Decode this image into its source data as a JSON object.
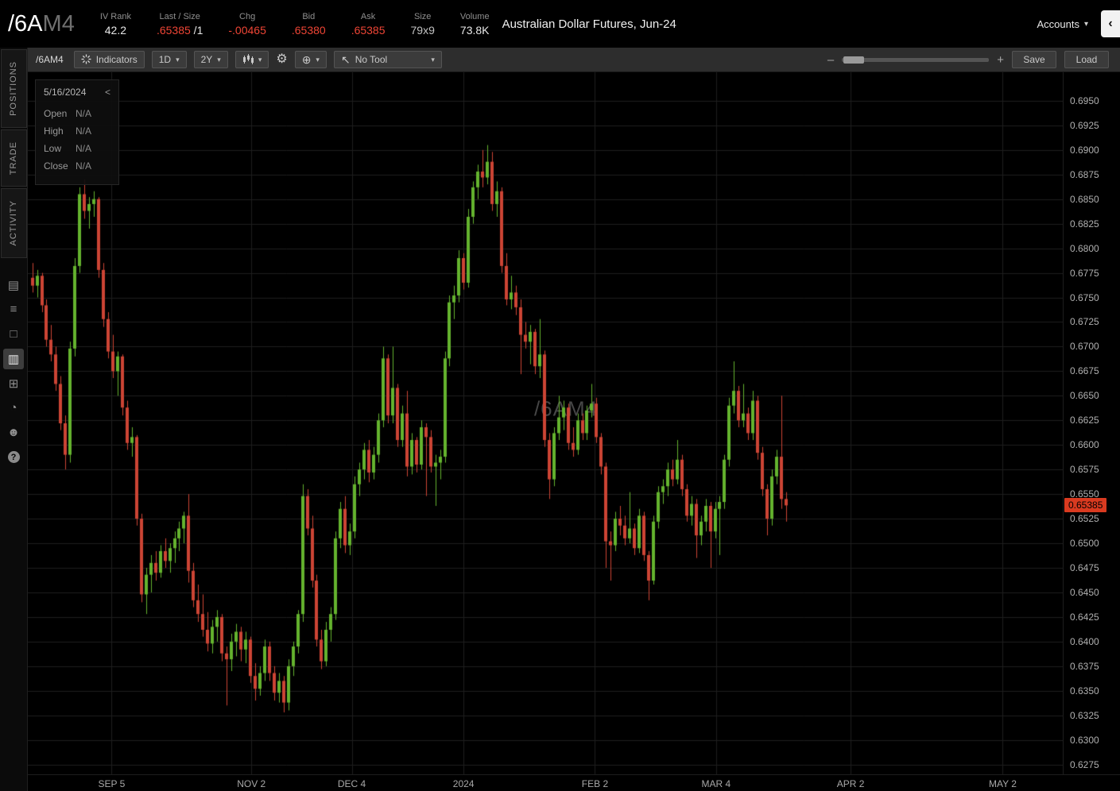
{
  "header": {
    "symbol": "/6A",
    "symbol_suffix": "M4",
    "stats": [
      {
        "label": "IV Rank",
        "value": "42.2",
        "value_class": "white"
      },
      {
        "label": "Last / Size",
        "value": ".65385",
        "value_class": "red",
        "suffix": " /1",
        "suffix_class": "white"
      },
      {
        "label": "Chg",
        "value": "-.00465",
        "value_class": "red"
      },
      {
        "label": "Bid",
        "value": ".65380",
        "value_class": "red"
      },
      {
        "label": "Ask",
        "value": ".65385",
        "value_class": "red"
      },
      {
        "label": "Size",
        "value": "79x9",
        "value_class": "dim"
      },
      {
        "label": "Volume",
        "value": "73.8K",
        "value_class": "white"
      }
    ],
    "description": "Australian Dollar Futures, Jun-24",
    "accounts_label": "Accounts"
  },
  "sidebar": {
    "tabs": [
      {
        "label": "POSITIONS"
      },
      {
        "label": "TRADE"
      },
      {
        "label": "ACTIVITY"
      }
    ],
    "icons": [
      {
        "name": "quote-board-icon",
        "glyph": "▤"
      },
      {
        "name": "watchlist-icon",
        "glyph": "≡"
      },
      {
        "name": "orders-icon",
        "glyph": "□"
      },
      {
        "name": "chart-icon",
        "glyph": "▥",
        "active": true
      },
      {
        "name": "grid-icon",
        "glyph": "⊞"
      },
      {
        "name": "history-icon",
        "glyph": "◔"
      },
      {
        "name": "traders-icon",
        "glyph": "☻"
      },
      {
        "name": "help-icon",
        "glyph": "?",
        "circle": true
      }
    ]
  },
  "toolbar": {
    "symbol_label": "/6AM4",
    "indicators_label": "Indicators",
    "timeframe": "1D",
    "range": "2Y",
    "no_tool_label": "No Tool",
    "save_label": "Save",
    "load_label": "Load"
  },
  "icons": {
    "chevron_down": "▾",
    "chevron_left": "‹",
    "gear": "⚙",
    "crosshair": "⊕",
    "cursor": "↖",
    "minus": "–",
    "plus": "+",
    "panel_collapse": "<"
  },
  "ohlc": {
    "date": "5/16/2024",
    "rows": [
      {
        "label": "Open",
        "value": "N/A"
      },
      {
        "label": "High",
        "value": "N/A"
      },
      {
        "label": "Low",
        "value": "N/A"
      },
      {
        "label": "Close",
        "value": "N/A"
      }
    ]
  },
  "chart_data": {
    "type": "candlestick",
    "symbol_watermark": "/6AM4",
    "ylim": [
      0.6265,
      0.6979
    ],
    "y_ticks": [
      0.695,
      0.6925,
      0.69,
      0.6875,
      0.685,
      0.6825,
      0.68,
      0.6775,
      0.675,
      0.6725,
      0.67,
      0.6675,
      0.665,
      0.6625,
      0.66,
      0.6575,
      0.655,
      0.6525,
      0.65,
      0.6475,
      0.645,
      0.6425,
      0.64,
      0.6375,
      0.635,
      0.6325,
      0.63,
      0.6275
    ],
    "x_labels": [
      {
        "label": "SEP 5",
        "pos": 0.081
      },
      {
        "label": "NOV 2",
        "pos": 0.216
      },
      {
        "label": "DEC 4",
        "pos": 0.313
      },
      {
        "label": "2024",
        "pos": 0.421
      },
      {
        "label": "FEB 2",
        "pos": 0.548
      },
      {
        "label": "MAR 4",
        "pos": 0.665
      },
      {
        "label": "APR 2",
        "pos": 0.795
      },
      {
        "label": "MAY 2",
        "pos": 0.942
      }
    ],
    "last_price": 0.65385,
    "last_price_label": "0.65385",
    "data_span": [
      0.002,
      0.735
    ],
    "candles": [
      [
        0.677,
        0.6785,
        0.6755,
        0.6762
      ],
      [
        0.6762,
        0.6778,
        0.675,
        0.6772
      ],
      [
        0.6772,
        0.6775,
        0.6735,
        0.6742
      ],
      [
        0.6742,
        0.6748,
        0.67,
        0.6707
      ],
      [
        0.6707,
        0.6722,
        0.6685,
        0.6692
      ],
      [
        0.6692,
        0.67,
        0.6655,
        0.6662
      ],
      [
        0.6662,
        0.667,
        0.6615,
        0.6622
      ],
      [
        0.6622,
        0.663,
        0.6575,
        0.659
      ],
      [
        0.659,
        0.6705,
        0.6582,
        0.6698
      ],
      [
        0.6698,
        0.679,
        0.669,
        0.6782
      ],
      [
        0.6782,
        0.6862,
        0.6775,
        0.6855
      ],
      [
        0.6855,
        0.687,
        0.683,
        0.6838
      ],
      [
        0.6838,
        0.6852,
        0.682,
        0.6845
      ],
      [
        0.6845,
        0.6858,
        0.6832,
        0.685
      ],
      [
        0.685,
        0.6852,
        0.677,
        0.6778
      ],
      [
        0.6778,
        0.6785,
        0.672,
        0.6728
      ],
      [
        0.6728,
        0.6735,
        0.6688,
        0.6695
      ],
      [
        0.6695,
        0.6712,
        0.6668,
        0.6675
      ],
      [
        0.6675,
        0.6695,
        0.665,
        0.669
      ],
      [
        0.669,
        0.6692,
        0.663,
        0.6638
      ],
      [
        0.6638,
        0.6645,
        0.6595,
        0.6602
      ],
      [
        0.6602,
        0.6618,
        0.6588,
        0.6608
      ],
      [
        0.6608,
        0.661,
        0.6518,
        0.6525
      ],
      [
        0.6525,
        0.653,
        0.644,
        0.6448
      ],
      [
        0.6448,
        0.6475,
        0.6428,
        0.6468
      ],
      [
        0.6468,
        0.6488,
        0.645,
        0.648
      ],
      [
        0.648,
        0.6492,
        0.6462,
        0.647
      ],
      [
        0.647,
        0.6498,
        0.6465,
        0.6492
      ],
      [
        0.6492,
        0.6505,
        0.6475,
        0.6482
      ],
      [
        0.6482,
        0.65,
        0.647,
        0.6495
      ],
      [
        0.6495,
        0.6512,
        0.648,
        0.6505
      ],
      [
        0.6505,
        0.6522,
        0.6492,
        0.6515
      ],
      [
        0.6515,
        0.6532,
        0.65,
        0.6528
      ],
      [
        0.6528,
        0.655,
        0.646,
        0.6472
      ],
      [
        0.6472,
        0.648,
        0.6435,
        0.6442
      ],
      [
        0.6442,
        0.6458,
        0.642,
        0.6428
      ],
      [
        0.6428,
        0.6448,
        0.6405,
        0.6412
      ],
      [
        0.6412,
        0.643,
        0.639,
        0.6398
      ],
      [
        0.6398,
        0.6422,
        0.6388,
        0.6415
      ],
      [
        0.6415,
        0.6432,
        0.64,
        0.6425
      ],
      [
        0.6425,
        0.6428,
        0.638,
        0.6388
      ],
      [
        0.6388,
        0.6395,
        0.6335,
        0.6382
      ],
      [
        0.6382,
        0.6408,
        0.637,
        0.64
      ],
      [
        0.64,
        0.6418,
        0.6385,
        0.641
      ],
      [
        0.641,
        0.6415,
        0.638,
        0.6392
      ],
      [
        0.6392,
        0.641,
        0.6378,
        0.6402
      ],
      [
        0.6402,
        0.6405,
        0.6358,
        0.6365
      ],
      [
        0.6365,
        0.6378,
        0.634,
        0.6352
      ],
      [
        0.6352,
        0.6375,
        0.6345,
        0.6368
      ],
      [
        0.6368,
        0.6402,
        0.636,
        0.6395
      ],
      [
        0.6395,
        0.64,
        0.636,
        0.6368
      ],
      [
        0.6368,
        0.6375,
        0.634,
        0.6348
      ],
      [
        0.6348,
        0.6368,
        0.6338,
        0.636
      ],
      [
        0.636,
        0.6365,
        0.6328,
        0.6338
      ],
      [
        0.6338,
        0.6382,
        0.633,
        0.6375
      ],
      [
        0.6375,
        0.64,
        0.6365,
        0.6395
      ],
      [
        0.6395,
        0.6432,
        0.6388,
        0.6428
      ],
      [
        0.6428,
        0.656,
        0.642,
        0.6548
      ],
      [
        0.6548,
        0.6555,
        0.6508,
        0.6515
      ],
      [
        0.6515,
        0.6528,
        0.6455,
        0.6462
      ],
      [
        0.6462,
        0.6468,
        0.6395,
        0.6402
      ],
      [
        0.6402,
        0.6412,
        0.6372,
        0.638
      ],
      [
        0.638,
        0.642,
        0.6375,
        0.6412
      ],
      [
        0.6412,
        0.6435,
        0.64,
        0.6428
      ],
      [
        0.6428,
        0.6512,
        0.6422,
        0.6505
      ],
      [
        0.6505,
        0.6542,
        0.6495,
        0.6535
      ],
      [
        0.6535,
        0.6548,
        0.649,
        0.6498
      ],
      [
        0.6498,
        0.652,
        0.6488,
        0.6512
      ],
      [
        0.6512,
        0.6568,
        0.6505,
        0.656
      ],
      [
        0.656,
        0.6582,
        0.6548,
        0.6575
      ],
      [
        0.6575,
        0.6602,
        0.6565,
        0.6595
      ],
      [
        0.6595,
        0.6605,
        0.6562,
        0.6572
      ],
      [
        0.6572,
        0.6598,
        0.6565,
        0.659
      ],
      [
        0.659,
        0.6632,
        0.6582,
        0.6625
      ],
      [
        0.6625,
        0.67,
        0.6618,
        0.6688
      ],
      [
        0.6688,
        0.6692,
        0.6622,
        0.663
      ],
      [
        0.663,
        0.67,
        0.6622,
        0.6658
      ],
      [
        0.6658,
        0.6662,
        0.6598,
        0.6605
      ],
      [
        0.6605,
        0.664,
        0.6598,
        0.6632
      ],
      [
        0.6632,
        0.6655,
        0.6568,
        0.6578
      ],
      [
        0.6578,
        0.6612,
        0.657,
        0.6605
      ],
      [
        0.6605,
        0.6608,
        0.6572,
        0.658
      ],
      [
        0.658,
        0.6625,
        0.6575,
        0.6618
      ],
      [
        0.6618,
        0.6622,
        0.6548,
        0.6608
      ],
      [
        0.6608,
        0.6615,
        0.6572,
        0.6578
      ],
      [
        0.6578,
        0.659,
        0.6538,
        0.6582
      ],
      [
        0.6582,
        0.6595,
        0.6565,
        0.6588
      ],
      [
        0.6588,
        0.6695,
        0.6582,
        0.6688
      ],
      [
        0.6688,
        0.6752,
        0.668,
        0.6745
      ],
      [
        0.6745,
        0.6762,
        0.6728,
        0.6752
      ],
      [
        0.6752,
        0.6798,
        0.6745,
        0.679
      ],
      [
        0.679,
        0.6795,
        0.6758,
        0.6765
      ],
      [
        0.6765,
        0.684,
        0.676,
        0.6832
      ],
      [
        0.6832,
        0.6868,
        0.6825,
        0.6862
      ],
      [
        0.6862,
        0.6885,
        0.685,
        0.6878
      ],
      [
        0.6878,
        0.69,
        0.6862,
        0.6872
      ],
      [
        0.6872,
        0.6905,
        0.6865,
        0.6888
      ],
      [
        0.6888,
        0.6898,
        0.6838,
        0.6845
      ],
      [
        0.6845,
        0.6868,
        0.6832,
        0.6858
      ],
      [
        0.6858,
        0.6862,
        0.6775,
        0.6782
      ],
      [
        0.6782,
        0.6795,
        0.6742,
        0.6748
      ],
      [
        0.6748,
        0.6772,
        0.6738,
        0.6755
      ],
      [
        0.6755,
        0.6762,
        0.6732,
        0.674
      ],
      [
        0.674,
        0.6748,
        0.6672,
        0.6712
      ],
      [
        0.6712,
        0.6725,
        0.6698,
        0.6705
      ],
      [
        0.6705,
        0.6722,
        0.6682,
        0.6715
      ],
      [
        0.6715,
        0.6718,
        0.6672,
        0.668
      ],
      [
        0.668,
        0.6728,
        0.6668,
        0.6692
      ],
      [
        0.6692,
        0.6696,
        0.6598,
        0.6605
      ],
      [
        0.6605,
        0.6612,
        0.6545,
        0.6565
      ],
      [
        0.6565,
        0.6618,
        0.6558,
        0.6612
      ],
      [
        0.6612,
        0.665,
        0.6605,
        0.6628
      ],
      [
        0.6628,
        0.6645,
        0.6615,
        0.6638
      ],
      [
        0.6638,
        0.6642,
        0.6595,
        0.6602
      ],
      [
        0.6602,
        0.6618,
        0.6588,
        0.6595
      ],
      [
        0.6595,
        0.6632,
        0.659,
        0.6625
      ],
      [
        0.6625,
        0.6632,
        0.6605,
        0.6612
      ],
      [
        0.6612,
        0.664,
        0.6605,
        0.6635
      ],
      [
        0.6635,
        0.6662,
        0.6628,
        0.6642
      ],
      [
        0.6642,
        0.6648,
        0.6602,
        0.6608
      ],
      [
        0.6608,
        0.6612,
        0.657,
        0.6578
      ],
      [
        0.6578,
        0.6582,
        0.6475,
        0.6502
      ],
      [
        0.6502,
        0.6512,
        0.6462,
        0.6498
      ],
      [
        0.6498,
        0.6532,
        0.6492,
        0.6525
      ],
      [
        0.6525,
        0.6538,
        0.6508,
        0.6518
      ],
      [
        0.6518,
        0.6528,
        0.6498,
        0.6505
      ],
      [
        0.6505,
        0.6552,
        0.65,
        0.6515
      ],
      [
        0.6515,
        0.652,
        0.6488,
        0.6495
      ],
      [
        0.6495,
        0.6535,
        0.649,
        0.6528
      ],
      [
        0.6528,
        0.6532,
        0.6482,
        0.6488
      ],
      [
        0.6488,
        0.6492,
        0.6442,
        0.6462
      ],
      [
        0.6462,
        0.6528,
        0.6458,
        0.6522
      ],
      [
        0.6522,
        0.6558,
        0.6515,
        0.6552
      ],
      [
        0.6552,
        0.6565,
        0.654,
        0.6558
      ],
      [
        0.6558,
        0.6582,
        0.6548,
        0.6575
      ],
      [
        0.6575,
        0.6585,
        0.6558,
        0.6565
      ],
      [
        0.6565,
        0.6605,
        0.656,
        0.6585
      ],
      [
        0.6585,
        0.659,
        0.6548,
        0.6555
      ],
      [
        0.6555,
        0.656,
        0.6522,
        0.6528
      ],
      [
        0.6528,
        0.6548,
        0.6518,
        0.654
      ],
      [
        0.654,
        0.6545,
        0.6485,
        0.6508
      ],
      [
        0.6508,
        0.6528,
        0.6498,
        0.6522
      ],
      [
        0.6522,
        0.6545,
        0.6512,
        0.6538
      ],
      [
        0.6538,
        0.6542,
        0.6475,
        0.6512
      ],
      [
        0.6512,
        0.6542,
        0.6505,
        0.6535
      ],
      [
        0.6535,
        0.6548,
        0.6488,
        0.6542
      ],
      [
        0.6542,
        0.659,
        0.6535,
        0.6585
      ],
      [
        0.6585,
        0.6648,
        0.6578,
        0.664
      ],
      [
        0.664,
        0.6685,
        0.6632,
        0.6655
      ],
      [
        0.6655,
        0.666,
        0.6618,
        0.6625
      ],
      [
        0.6625,
        0.6662,
        0.6618,
        0.6632
      ],
      [
        0.6632,
        0.6638,
        0.6605,
        0.6612
      ],
      [
        0.6612,
        0.6655,
        0.6605,
        0.6645
      ],
      [
        0.6645,
        0.665,
        0.6585,
        0.6592
      ],
      [
        0.6592,
        0.6598,
        0.6548,
        0.6555
      ],
      [
        0.6555,
        0.656,
        0.6508,
        0.6525
      ],
      [
        0.6525,
        0.6575,
        0.6518,
        0.6568
      ],
      [
        0.6568,
        0.6595,
        0.656,
        0.6588
      ],
      [
        0.6588,
        0.665,
        0.6535,
        0.6545
      ],
      [
        0.6545,
        0.6552,
        0.6522,
        0.65385
      ]
    ]
  },
  "colors": {
    "up": "#64b32e",
    "down": "#cc4434",
    "grid": "#1e1e1e",
    "axis_text": "#b0b0b0",
    "price_tag_bg": "#d93a20",
    "price_tag_text": "#000000",
    "accent_red": "#ef4535",
    "watermark": "#464646"
  }
}
